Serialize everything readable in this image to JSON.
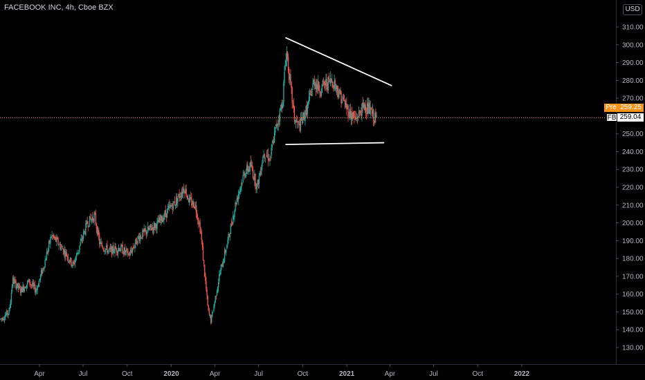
{
  "header": {
    "symbol_title": "FACEBOOK INC, 4h, Cboe BZX"
  },
  "toolbar": {
    "currency_label": "USD"
  },
  "price_badges": {
    "pre": {
      "tag": "Pre",
      "value": "259.25"
    },
    "last": {
      "tag": "FB",
      "value": "259.04"
    }
  },
  "colors": {
    "up": "#26a69a",
    "down": "#ef5350",
    "background": "#000000",
    "trendline": "#ffffff",
    "pre_market": "#f7931a"
  },
  "chart_data": {
    "type": "candlestick",
    "title": "",
    "xlabel": "",
    "ylabel": "",
    "y_ticks": [
      130,
      140,
      150,
      160,
      170,
      180,
      190,
      200,
      210,
      220,
      230,
      240,
      250,
      260,
      270,
      280,
      290,
      300,
      310
    ],
    "x_ticks": [
      "Apr",
      "Jul",
      "Oct",
      "2020",
      "Apr",
      "Jul",
      "Oct",
      "2021",
      "Apr",
      "Jul",
      "Oct",
      "2022"
    ],
    "ylim": [
      122,
      316
    ],
    "grid": false,
    "current_price_line": 259.04,
    "price_path": [
      [
        "2019-01-10",
        146
      ],
      [
        "2019-01-28",
        150
      ],
      [
        "2019-02-04",
        168
      ],
      [
        "2019-02-20",
        162
      ],
      [
        "2019-03-10",
        167
      ],
      [
        "2019-03-25",
        162
      ],
      [
        "2019-04-10",
        176
      ],
      [
        "2019-04-26",
        193
      ],
      [
        "2019-05-12",
        188
      ],
      [
        "2019-05-28",
        182
      ],
      [
        "2019-06-10",
        176
      ],
      [
        "2019-06-25",
        188
      ],
      [
        "2019-07-10",
        200
      ],
      [
        "2019-07-25",
        204
      ],
      [
        "2019-08-05",
        188
      ],
      [
        "2019-08-25",
        184
      ],
      [
        "2019-09-15",
        186
      ],
      [
        "2019-10-05",
        182
      ],
      [
        "2019-10-25",
        192
      ],
      [
        "2019-11-15",
        196
      ],
      [
        "2019-12-05",
        200
      ],
      [
        "2019-12-28",
        208
      ],
      [
        "2020-01-10",
        212
      ],
      [
        "2020-01-28",
        220
      ],
      [
        "2020-02-08",
        212
      ],
      [
        "2020-02-20",
        210
      ],
      [
        "2020-03-02",
        196
      ],
      [
        "2020-03-18",
        150
      ],
      [
        "2020-03-24",
        145
      ],
      [
        "2020-04-10",
        170
      ],
      [
        "2020-04-28",
        190
      ],
      [
        "2020-05-15",
        212
      ],
      [
        "2020-06-01",
        228
      ],
      [
        "2020-06-15",
        232
      ],
      [
        "2020-06-28",
        220
      ],
      [
        "2020-07-12",
        240
      ],
      [
        "2020-07-25",
        236
      ],
      [
        "2020-08-05",
        252
      ],
      [
        "2020-08-20",
        268
      ],
      [
        "2020-08-28",
        298
      ],
      [
        "2020-09-04",
        280
      ],
      [
        "2020-09-14",
        258
      ],
      [
        "2020-09-24",
        254
      ],
      [
        "2020-10-10",
        264
      ],
      [
        "2020-10-25",
        280
      ],
      [
        "2020-11-05",
        275
      ],
      [
        "2020-11-18",
        278
      ],
      [
        "2020-12-02",
        280
      ],
      [
        "2020-12-18",
        272
      ],
      [
        "2021-01-06",
        262
      ],
      [
        "2021-01-20",
        258
      ],
      [
        "2021-01-28",
        262
      ],
      [
        "2021-02-08",
        266
      ],
      [
        "2021-02-20",
        262
      ],
      [
        "2021-03-02",
        258
      ],
      [
        "2021-03-05",
        259
      ]
    ],
    "trendlines": [
      {
        "name": "upper",
        "start": [
          "2020-08-26",
          304
        ],
        "end": [
          "2021-04-05",
          277
        ]
      },
      {
        "name": "lower",
        "start": [
          "2020-08-26",
          244
        ],
        "end": [
          "2021-03-20",
          245
        ]
      }
    ]
  }
}
